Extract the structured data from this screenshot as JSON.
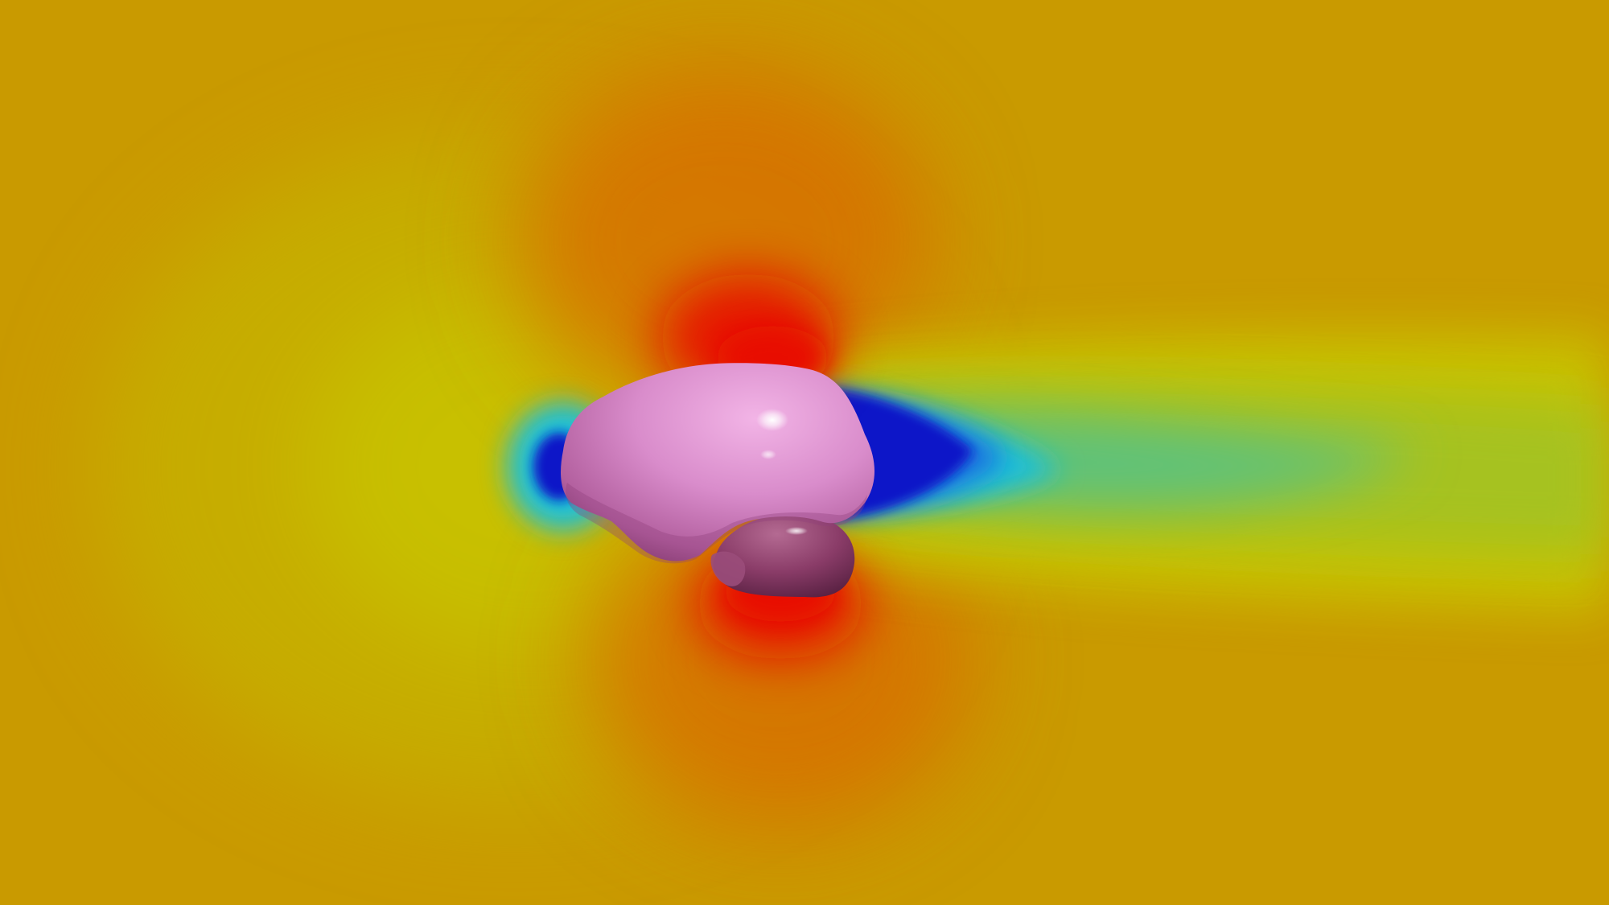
{
  "render": {
    "colors": {
      "freestream": "#c99a00",
      "yellow": "#c8c400",
      "yellow_green": "#a6c21e",
      "green": "#5cc27a",
      "cyan": "#1ec0d8",
      "light_blue": "#1a6fe0",
      "blue": "#0a18c8",
      "orange": "#e07000",
      "red": "#e80800",
      "body_light": "#e59ad6",
      "body_mid": "#c06aab",
      "body_dark": "#6a2a55",
      "bottom_body": "#8a3c68",
      "highlight": "#ffffff"
    }
  }
}
